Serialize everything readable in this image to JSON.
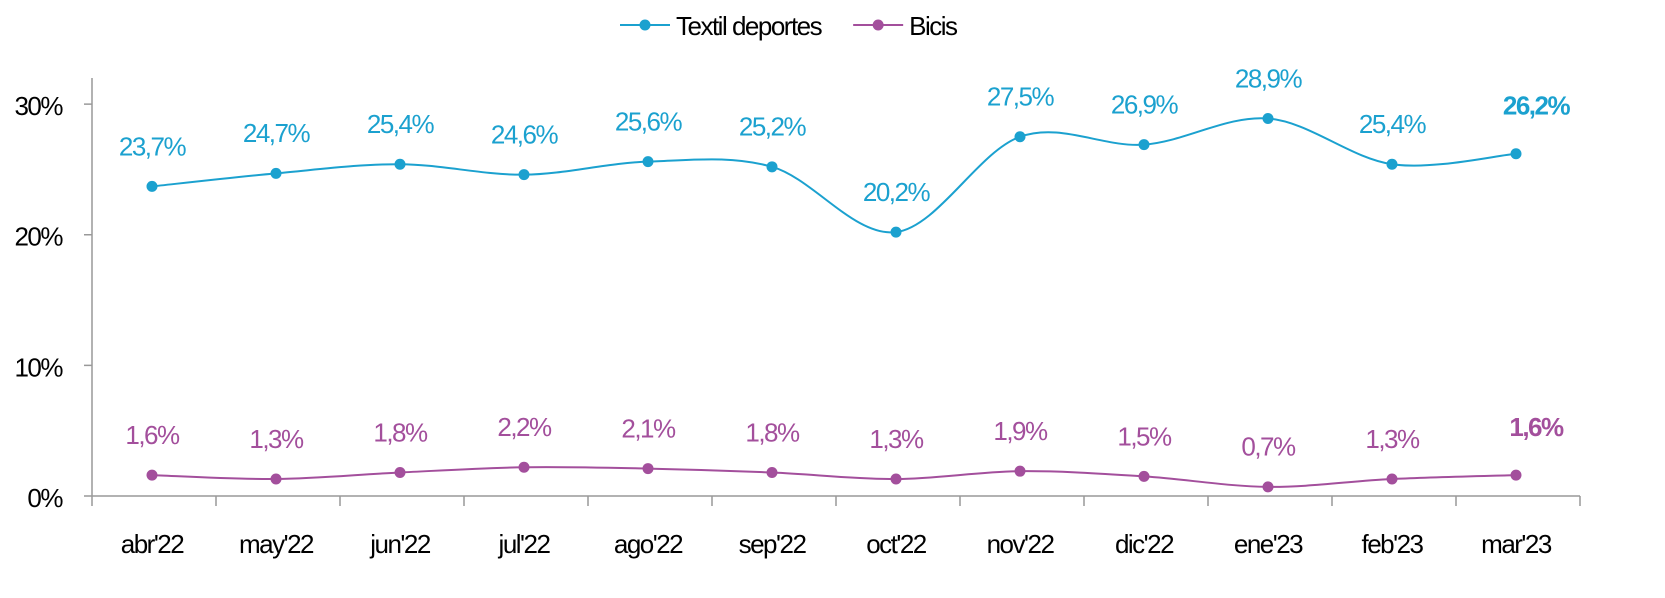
{
  "chart_data": {
    "type": "line",
    "categories": [
      "abr'22",
      "may'22",
      "jun'22",
      "jul'22",
      "ago'22",
      "sep'22",
      "oct'22",
      "nov'22",
      "dic'22",
      "ene'23",
      "feb'23",
      "mar'23"
    ],
    "series": [
      {
        "name": "Textil deportes",
        "color": "#1ba1cf",
        "values": [
          23.7,
          24.7,
          25.4,
          24.6,
          25.6,
          25.2,
          20.2,
          27.5,
          26.9,
          28.9,
          25.4,
          26.2
        ],
        "value_labels": [
          "23,7%",
          "24,7%",
          "25,4%",
          "24,6%",
          "25,6%",
          "25,2%",
          "20,2%",
          "27,5%",
          "26,9%",
          "28,9%",
          "25,4%",
          "26,2%"
        ]
      },
      {
        "name": "Bicis",
        "color": "#a34f9c",
        "values": [
          1.6,
          1.3,
          1.8,
          2.2,
          2.1,
          1.8,
          1.3,
          1.9,
          1.5,
          0.7,
          1.3,
          1.6
        ],
        "value_labels": [
          "1,6%",
          "1,3%",
          "1,8%",
          "2,2%",
          "2,1%",
          "1,8%",
          "1,3%",
          "1,9%",
          "1,5%",
          "0,7%",
          "1,3%",
          "1,6%"
        ]
      }
    ],
    "ylim": [
      0,
      32
    ],
    "yticks": [
      {
        "value": 0,
        "label": "0%"
      },
      {
        "value": 10,
        "label": "10%"
      },
      {
        "value": 20,
        "label": "20%"
      },
      {
        "value": 30,
        "label": "30%"
      }
    ],
    "legend": "top"
  }
}
